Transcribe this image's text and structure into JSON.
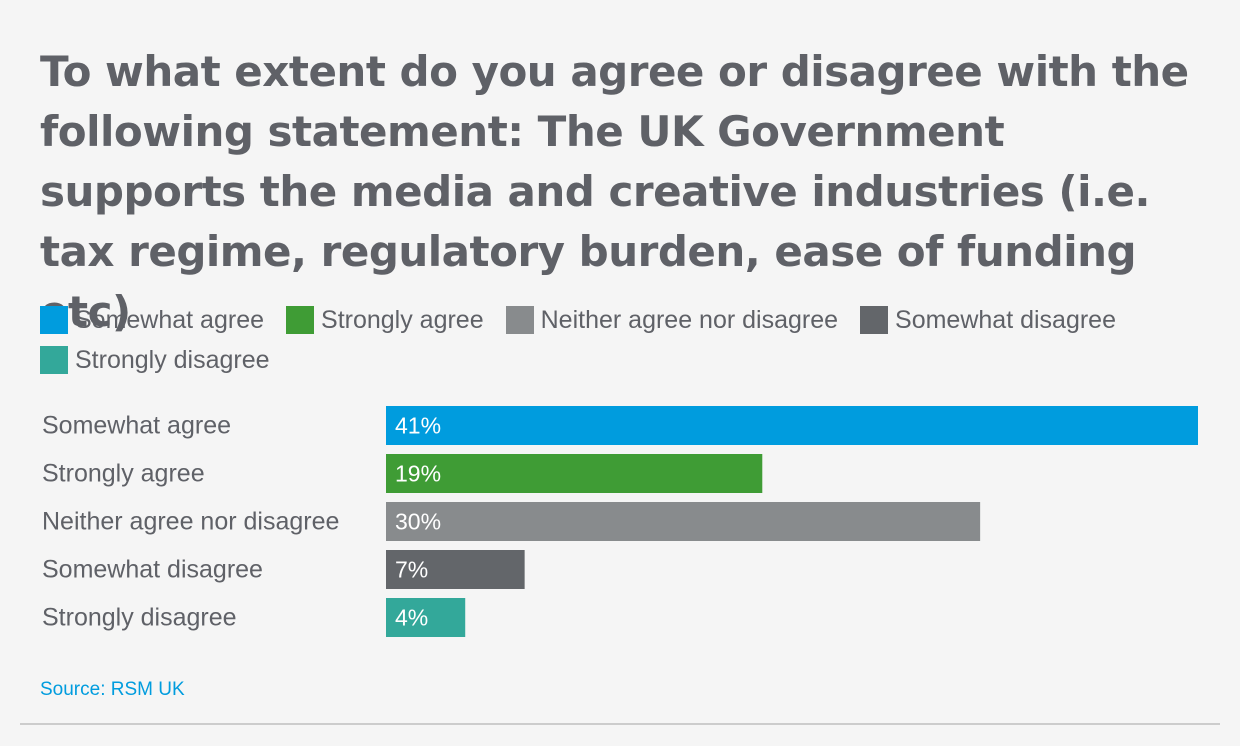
{
  "chart_data": {
    "type": "bar",
    "orientation": "horizontal",
    "title": "To what extent do you agree or disagree with the following statement: The UK Government supports the media and creative industries (i.e. tax regime, regulatory burden, ease of funding etc)",
    "categories": [
      "Somewhat agree",
      "Strongly agree",
      "Neither agree nor disagree",
      "Somewhat disagree",
      "Strongly disagree"
    ],
    "values": [
      41,
      19,
      30,
      7,
      4
    ],
    "value_labels": [
      "41%",
      "19%",
      "30%",
      "7%",
      "4%"
    ],
    "colors": [
      "#009cde",
      "#3f9c35",
      "#888b8d",
      "#63666a",
      "#33a89a"
    ],
    "xlim": [
      0,
      41
    ],
    "grid": false,
    "legend": {
      "placement": "top-left",
      "entries": [
        "Somewhat agree",
        "Strongly agree",
        "Neither agree nor disagree",
        "Somewhat disagree",
        "Strongly disagree"
      ]
    },
    "source": "Source: RSM UK"
  }
}
